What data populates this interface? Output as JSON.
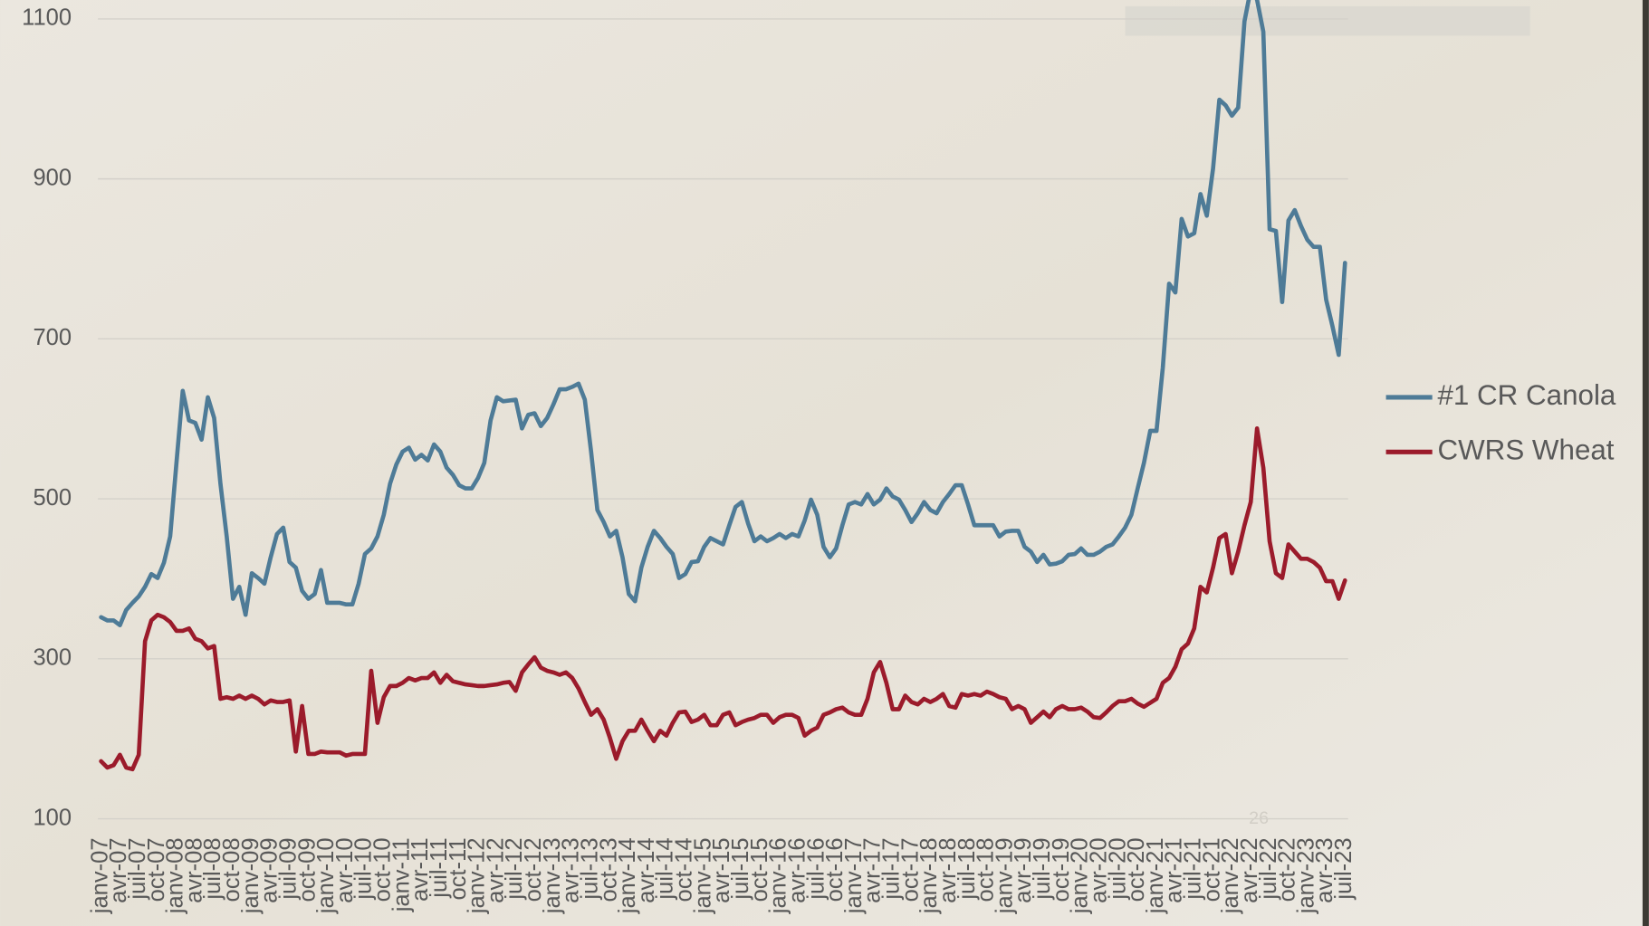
{
  "chart_data": {
    "type": "line",
    "slide_number": "26",
    "categories": [
      "janv-07",
      null,
      null,
      "avr-07",
      null,
      null,
      "juil-07",
      null,
      null,
      "oct-07",
      null,
      null,
      "janv-08",
      null,
      null,
      "avr-08",
      null,
      null,
      "juil-08",
      null,
      null,
      "oct-08",
      null,
      null,
      "janv-09",
      null,
      null,
      "avr-09",
      null,
      null,
      "juil-09",
      null,
      null,
      "oct-09",
      null,
      null,
      "janv-10",
      null,
      null,
      "avr-10",
      null,
      null,
      "juil-10",
      null,
      null,
      "oct-10",
      null,
      null,
      "janv-11",
      null,
      null,
      "avr-11",
      null,
      null,
      "juil-11",
      null,
      null,
      "oct-11",
      null,
      null,
      "janv-12",
      null,
      null,
      "avr-12",
      null,
      null,
      "juil-12",
      null,
      null,
      "oct-12",
      null,
      null,
      "janv-13",
      null,
      null,
      "avr-13",
      null,
      null,
      "juil-13",
      null,
      null,
      "oct-13",
      null,
      null,
      "janv-14",
      null,
      null,
      "avr-14",
      null,
      null,
      "juil-14",
      null,
      null,
      "oct-14",
      null,
      null,
      "janv-15",
      null,
      null,
      "avr-15",
      null,
      null,
      "juil-15",
      null,
      null,
      "oct-15",
      null,
      null,
      "janv-16",
      null,
      null,
      "avr-16",
      null,
      null,
      "juil-16",
      null,
      null,
      "oct-16",
      null,
      null,
      "janv-17",
      null,
      null,
      "avr-17",
      null,
      null,
      "juil-17",
      null,
      null,
      "oct-17",
      null,
      null,
      "janv-18",
      null,
      null,
      "avr-18",
      null,
      null,
      "juil-18",
      null,
      null,
      "oct-18",
      null,
      null,
      "janv-19",
      null,
      null,
      "avr-19",
      null,
      null,
      "juil-19",
      null,
      null,
      "oct-19",
      null,
      null,
      "janv-20",
      null,
      null,
      "avr-20",
      null,
      null,
      "juil-20",
      null,
      null,
      "oct-20",
      null,
      null,
      "janv-21",
      null,
      null,
      "avr-21",
      null,
      null,
      "juil-21",
      null,
      null,
      "oct-21",
      null,
      null,
      "janv-22",
      null,
      null,
      "avr-22",
      null,
      null,
      "juil-22",
      null,
      null,
      "oct-22",
      null,
      null,
      "janv-23",
      null,
      null,
      "avr-23",
      null,
      null,
      "juil-23"
    ],
    "series": [
      {
        "name": "#1 CR Canola",
        "color": "#4e7b97",
        "values": [
          352,
          348,
          348,
          342,
          361,
          370,
          378,
          390,
          406,
          401,
          420,
          453,
          545,
          635,
          598,
          595,
          574,
          627,
          601,
          519,
          453,
          375,
          390,
          355,
          407,
          401,
          394,
          427,
          456,
          464,
          421,
          414,
          385,
          375,
          381,
          411,
          370,
          370,
          370,
          368,
          368,
          394,
          431,
          438,
          453,
          480,
          519,
          543,
          559,
          564,
          549,
          555,
          548,
          568,
          559,
          539,
          530,
          517,
          513,
          513,
          526,
          545,
          598,
          627,
          622,
          623,
          624,
          588,
          605,
          607,
          591,
          601,
          618,
          637,
          637,
          640,
          644,
          624,
          559,
          486,
          471,
          453,
          460,
          427,
          381,
          372,
          414,
          440,
          460,
          451,
          440,
          431,
          401,
          406,
          421,
          422,
          440,
          451,
          447,
          443,
          467,
          490,
          496,
          469,
          447,
          453,
          447,
          451,
          456,
          451,
          456,
          453,
          473,
          499,
          480,
          440,
          427,
          438,
          467,
          493,
          496,
          493,
          506,
          493,
          499,
          513,
          503,
          499,
          486,
          471,
          482,
          496,
          486,
          482,
          496,
          506,
          517,
          517,
          493,
          467,
          467,
          467,
          467,
          453,
          459,
          460,
          460,
          440,
          434,
          421,
          430,
          418,
          419,
          422,
          430,
          431,
          438,
          430,
          430,
          434,
          440,
          443,
          453,
          464,
          480,
          513,
          545,
          585,
          585,
          664,
          769,
          758,
          850,
          828,
          832,
          881,
          854,
          913,
          999,
          992,
          979,
          989,
          1097,
          1137,
          1124,
          1084,
          837,
          835,
          746,
          848,
          861,
          841,
          824,
          815,
          815,
          749,
          716,
          680,
          795
        ]
      },
      {
        "name": "CWRS Wheat",
        "color": "#9b1b2b",
        "values": [
          172,
          164,
          167,
          180,
          164,
          162,
          180,
          322,
          348,
          355,
          352,
          346,
          335,
          335,
          338,
          325,
          322,
          313,
          316,
          250,
          252,
          250,
          254,
          250,
          254,
          250,
          243,
          248,
          246,
          246,
          248,
          184,
          241,
          181,
          181,
          184,
          183,
          183,
          183,
          179,
          181,
          181,
          181,
          285,
          220,
          252,
          266,
          266,
          270,
          276,
          273,
          276,
          276,
          283,
          270,
          280,
          272,
          270,
          268,
          267,
          266,
          266,
          267,
          268,
          270,
          271,
          260,
          283,
          293,
          302,
          289,
          285,
          283,
          280,
          283,
          276,
          263,
          246,
          230,
          237,
          224,
          201,
          175,
          197,
          210,
          210,
          224,
          210,
          197,
          210,
          204,
          220,
          233,
          234,
          221,
          224,
          230,
          217,
          217,
          230,
          233,
          217,
          221,
          224,
          226,
          230,
          230,
          220,
          227,
          230,
          230,
          226,
          204,
          210,
          214,
          230,
          233,
          237,
          239,
          233,
          230,
          230,
          250,
          283,
          296,
          270,
          237,
          237,
          254,
          246,
          243,
          250,
          246,
          250,
          256,
          241,
          239,
          256,
          254,
          256,
          254,
          259,
          256,
          252,
          250,
          237,
          241,
          237,
          220,
          227,
          234,
          227,
          237,
          241,
          237,
          237,
          239,
          234,
          227,
          226,
          233,
          241,
          247,
          247,
          250,
          244,
          240,
          245,
          250,
          270,
          276,
          290,
          312,
          319,
          338,
          390,
          383,
          414,
          451,
          456,
          407,
          434,
          467,
          496,
          588,
          539,
          447,
          407,
          401,
          443,
          434,
          425,
          425,
          421,
          414,
          397,
          397,
          375,
          398
        ]
      }
    ],
    "ylim": [
      100,
      1100
    ],
    "yticks": [
      100,
      300,
      500,
      700,
      900,
      1100
    ],
    "grid": true,
    "legend": "right"
  }
}
